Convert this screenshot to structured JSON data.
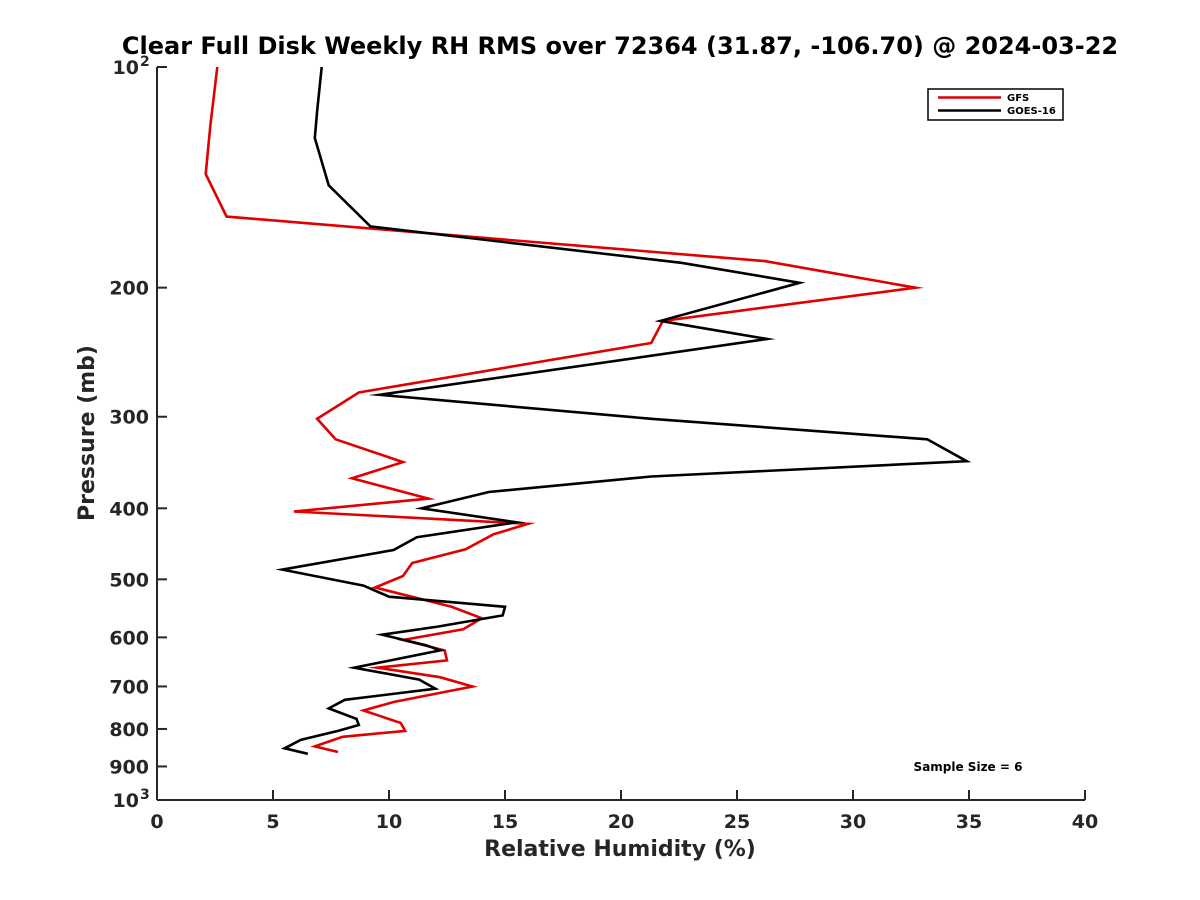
{
  "chart_data": {
    "type": "line",
    "orientation": "profile",
    "title": "Clear Full Disk Weekly RH RMS over 72364 (31.87, -106.70) @ 2024-03-22",
    "xlabel": "Relative Humidity (%)",
    "ylabel": "Pressure (mb)",
    "xlim": [
      0,
      40
    ],
    "ylim": [
      100,
      1000
    ],
    "y_scale": "log",
    "y_reversed": true,
    "x_ticks": [
      "0",
      "5",
      "10",
      "15",
      "20",
      "25",
      "30",
      "35",
      "40"
    ],
    "y_ticks": [
      {
        "value": 100,
        "label": "10",
        "sup": "2"
      },
      {
        "value": 200,
        "label": "200",
        "sup": ""
      },
      {
        "value": 300,
        "label": "300",
        "sup": ""
      },
      {
        "value": 400,
        "label": "400",
        "sup": ""
      },
      {
        "value": 500,
        "label": "500",
        "sup": ""
      },
      {
        "value": 600,
        "label": "600",
        "sup": ""
      },
      {
        "value": 700,
        "label": "700",
        "sup": ""
      },
      {
        "value": 800,
        "label": "800",
        "sup": ""
      },
      {
        "value": 900,
        "label": "900",
        "sup": ""
      },
      {
        "value": 1000,
        "label": "10",
        "sup": "3"
      }
    ],
    "legend_position": "top-right",
    "grid": false,
    "annotation": "Sample Size = 6",
    "series": [
      {
        "name": "GFS",
        "color": "#e00000",
        "x": [
          2.6,
          2.3,
          2.1,
          3.0,
          26.2,
          32.7,
          21.8,
          21.3,
          8.7,
          6.9,
          7.7,
          10.6,
          8.4,
          11.7,
          5.9,
          16.0,
          14.5,
          13.3,
          11.0,
          10.6,
          9.4,
          12.7,
          14.0,
          13.2,
          10.6,
          12.4,
          12.5,
          9.5,
          12.2,
          13.6,
          10.2,
          8.9,
          10.5,
          10.7,
          8.0,
          6.8,
          7.8
        ],
        "y": [
          100,
          120,
          140,
          160,
          184,
          200,
          222,
          238,
          278,
          302,
          322,
          346,
          364,
          388,
          404,
          420,
          434,
          455,
          475,
          495,
          513,
          545,
          565,
          585,
          605,
          625,
          645,
          660,
          680,
          700,
          735,
          755,
          785,
          805,
          820,
          845,
          860
        ]
      },
      {
        "name": "GOES-16",
        "color": "#000000",
        "x": [
          7.1,
          6.9,
          6.8,
          7.4,
          9.2,
          22.6,
          27.7,
          21.7,
          26.3,
          9.6,
          21.3,
          33.2,
          34.9,
          21.3,
          14.3,
          11.4,
          15.5,
          11.2,
          10.2,
          5.4,
          8.9,
          10.0,
          15.0,
          14.9,
          12.1,
          9.7,
          11.6,
          12.2,
          8.5,
          11.3,
          12.0,
          8.1,
          7.4,
          8.6,
          8.7,
          7.8,
          6.2,
          5.5,
          6.5
        ],
        "y": [
          100,
          115,
          125,
          145,
          165,
          185,
          197,
          222,
          235,
          280,
          302,
          322,
          345,
          362,
          380,
          400,
          418,
          438,
          456,
          485,
          510,
          528,
          545,
          560,
          580,
          595,
          615,
          625,
          660,
          685,
          705,
          730,
          750,
          775,
          790,
          805,
          828,
          850,
          865
        ]
      }
    ]
  }
}
